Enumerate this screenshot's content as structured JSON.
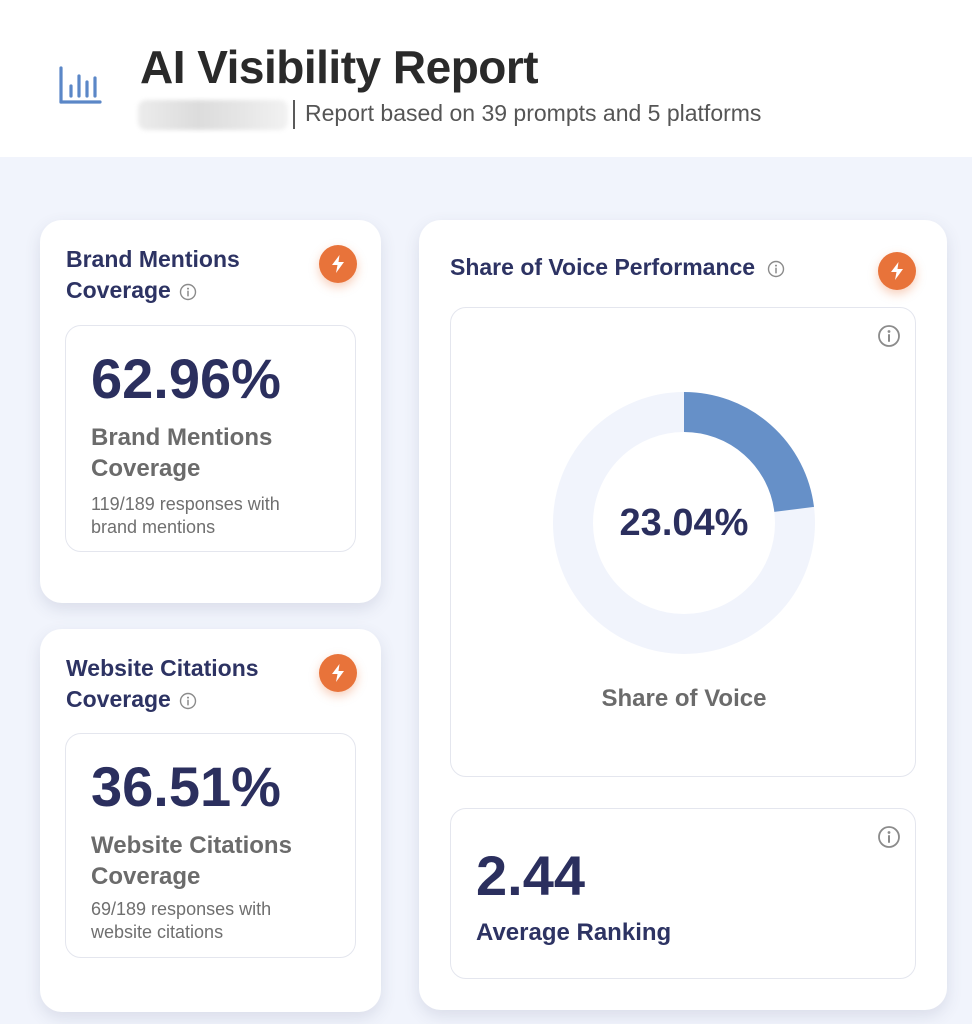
{
  "header": {
    "icon": "bar-chart-icon",
    "title": "AI Visibility Report",
    "subtitle": "Report based on 39 prompts and 5 platforms"
  },
  "brand_mentions": {
    "title_line1": "Brand Mentions",
    "title_line2": "Coverage",
    "value": "62.96%",
    "label_line1": "Brand Mentions",
    "label_line2": "Coverage",
    "detail_line1": "119/189 responses with",
    "detail_line2": "brand mentions"
  },
  "website_citations": {
    "title_line1": "Website Citations",
    "title_line2": "Coverage",
    "value": "36.51%",
    "label_line1": "Website Citations",
    "label_line2": "Coverage",
    "detail_line1": "69/189 responses with",
    "detail_line2": "website citations"
  },
  "share_of_voice": {
    "title": "Share of Voice Performance",
    "value_text": "23.04%",
    "fraction": 0.2304,
    "label": "Share of Voice"
  },
  "average_ranking": {
    "value": "2.44",
    "label": "Average Ranking"
  },
  "colors": {
    "accent_orange": "#e8733a",
    "donut_fill": "#6690c8",
    "donut_track": "#f1f4fc",
    "navy_text": "#2b2f5e"
  }
}
